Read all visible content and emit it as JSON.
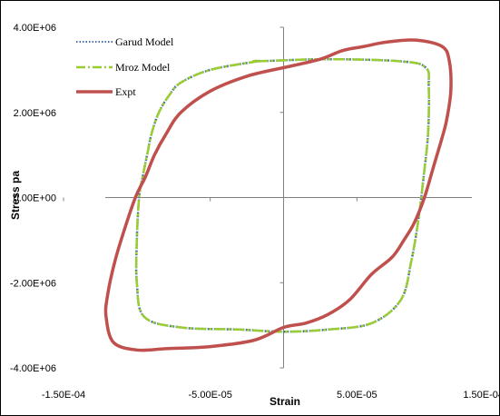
{
  "chart_data": {
    "type": "line",
    "title": "",
    "xlabel": "Strain",
    "ylabel": "Stress pa",
    "xlim": [
      -0.00015,
      0.00015
    ],
    "ylim": [
      -4000000,
      4000000
    ],
    "x_ticks": [
      -0.00015,
      -5e-05,
      5e-05,
      0.00015
    ],
    "x_tick_labels": [
      "-1.50E-04",
      "-5.00E-05",
      "5.00E-05",
      "1.50E-04"
    ],
    "y_ticks": [
      4000000,
      2000000,
      0,
      -2000000,
      -4000000
    ],
    "y_tick_labels": [
      "4.00E+06",
      "2.00E+06",
      "0.00E+00",
      "-2.00E+06",
      "-4.00E+06"
    ],
    "grid": false,
    "legend": {
      "placement": "top-left"
    },
    "colors": {
      "garud": "#4a6fa5",
      "mroz": "#9acd32",
      "expt": "#c0504d"
    },
    "series": [
      {
        "name": "Garud Model",
        "style": "dotted",
        "color": "#4a6fa5",
        "x": [
          -1.8e-05,
          3e-05,
          8e-05,
          9.7e-05,
          9.9e-05,
          9.85e-05,
          9.55e-05,
          9.2e-05,
          8.7e-05,
          8e-05,
          6e-05,
          3e-05,
          0.0,
          -3e-05,
          -7e-05,
          -9.5e-05,
          -0.0001,
          -0.0001,
          -9.85e-05,
          -9.6e-05,
          -9.3e-05,
          -9e-05,
          -8.5e-05,
          -7.8e-05,
          -7e-05,
          -5e-05,
          -1.8e-05
        ],
        "y": [
          3200000,
          3250000,
          3200000,
          3050000,
          2600000,
          1500000,
          500000,
          -500000,
          -1500000,
          -2400000,
          -2950000,
          -3100000,
          -3150000,
          -3100000,
          -3050000,
          -2800000,
          -2000000,
          -1000000,
          0,
          500000,
          1000000,
          1500000,
          2000000,
          2400000,
          2700000,
          3000000,
          3200000
        ]
      },
      {
        "name": "Mroz Model",
        "style": "dash-dot",
        "color": "#9acd32",
        "x": [
          -1.8e-05,
          3e-05,
          8e-05,
          9.7e-05,
          9.9e-05,
          9.85e-05,
          9.55e-05,
          9.2e-05,
          8.7e-05,
          8e-05,
          6e-05,
          3e-05,
          0.0,
          -3e-05,
          -7e-05,
          -9.5e-05,
          -0.0001,
          -0.0001,
          -9.85e-05,
          -9.6e-05,
          -9.3e-05,
          -9e-05,
          -8.5e-05,
          -7.8e-05,
          -7e-05,
          -5e-05,
          -1.8e-05
        ],
        "y": [
          3200000,
          3250000,
          3200000,
          3050000,
          2600000,
          1500000,
          500000,
          -500000,
          -1500000,
          -2400000,
          -2950000,
          -3100000,
          -3150000,
          -3100000,
          -3050000,
          -2800000,
          -2000000,
          -1000000,
          0,
          500000,
          1000000,
          1500000,
          2000000,
          2400000,
          2700000,
          3000000,
          3200000
        ]
      },
      {
        "name": "Expt",
        "style": "solid",
        "color": "#c0504d",
        "x": [
          0.0,
          2.5e-05,
          4e-05,
          5.5e-05,
          7e-05,
          9e-05,
          0.000108,
          0.000113,
          0.000114,
          0.000111,
          0.000108,
          0.000102,
          9.6e-05,
          8.9e-05,
          8.2e-05,
          7.4e-05,
          6e-05,
          4.5e-05,
          3e-05,
          1.5e-05,
          0.0,
          -2e-05,
          -5e-05,
          -8e-05,
          -0.0001,
          -0.000116,
          -0.000121,
          -0.00012,
          -0.000115,
          -0.000108,
          -0.000101,
          -9.4e-05,
          -8.8e-05,
          -8e-05,
          -7e-05,
          -5e-05,
          -2.5e-05,
          0.0
        ],
        "y": [
          3050000,
          3250000,
          3450000,
          3550000,
          3650000,
          3700000,
          3550000,
          3200000,
          2500000,
          1800000,
          1400000,
          700000,
          0,
          -600000,
          -1000000,
          -1400000,
          -1800000,
          -2400000,
          -2750000,
          -2950000,
          -3050000,
          -3350000,
          -3500000,
          -3550000,
          -3580000,
          -3400000,
          -2800000,
          -2300000,
          -1500000,
          -700000,
          0,
          500000,
          1000000,
          1500000,
          2000000,
          2500000,
          2850000,
          3050000
        ]
      }
    ]
  }
}
